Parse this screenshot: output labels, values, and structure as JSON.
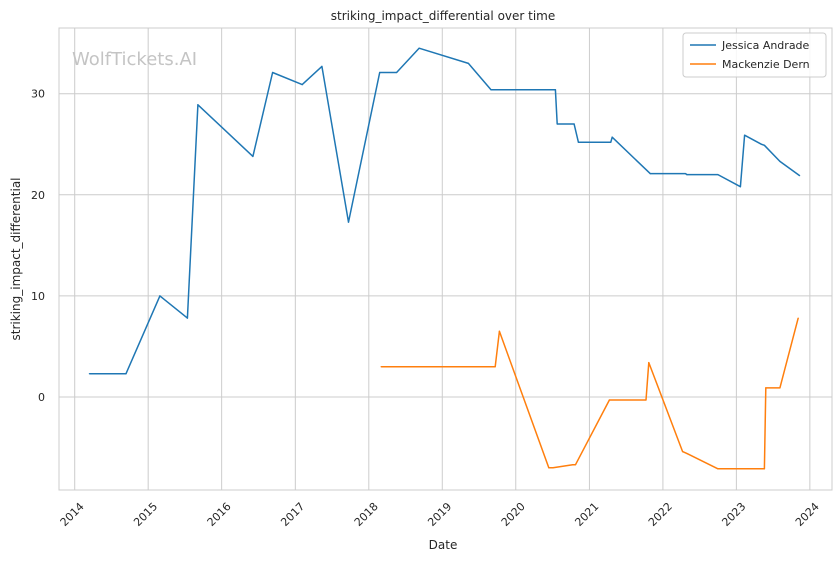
{
  "chart_data": {
    "type": "line",
    "title": "striking_impact_differential over time",
    "xlabel": "Date",
    "ylabel": "striking_impact_differential",
    "watermark": "WolfTickets.AI",
    "grid": true,
    "legend_position": "top-right",
    "xlim": [
      "2013-10-15",
      "2024-04-20"
    ],
    "ylim": [
      -9.2,
      36.5
    ],
    "x_ticks": [
      "2014",
      "2015",
      "2016",
      "2017",
      "2018",
      "2019",
      "2020",
      "2021",
      "2022",
      "2023",
      "2024"
    ],
    "y_ticks": [
      0,
      10,
      20,
      30
    ],
    "series": [
      {
        "name": "Jessica Andrade",
        "color": "#1f77b4",
        "points": [
          [
            "2014-03-15",
            2.3
          ],
          [
            "2014-09-13",
            2.3
          ],
          [
            "2015-02-28",
            10.0
          ],
          [
            "2015-07-15",
            7.8
          ],
          [
            "2015-09-05",
            28.9
          ],
          [
            "2016-06-04",
            23.8
          ],
          [
            "2016-09-10",
            32.1
          ],
          [
            "2017-02-04",
            30.9
          ],
          [
            "2017-05-13",
            32.7
          ],
          [
            "2017-09-22",
            17.3
          ],
          [
            "2018-02-24",
            32.1
          ],
          [
            "2018-05-19",
            32.1
          ],
          [
            "2018-09-08",
            34.5
          ],
          [
            "2019-05-11",
            33.0
          ],
          [
            "2019-08-31",
            30.4
          ],
          [
            "2020-04-18",
            30.4
          ],
          [
            "2020-07-16",
            30.4
          ],
          [
            "2020-07-25",
            27.0
          ],
          [
            "2020-10-17",
            27.0
          ],
          [
            "2020-11-07",
            25.2
          ],
          [
            "2021-04-17",
            25.2
          ],
          [
            "2021-04-24",
            25.7
          ],
          [
            "2021-10-30",
            22.1
          ],
          [
            "2022-04-23",
            22.1
          ],
          [
            "2022-04-30",
            22.0
          ],
          [
            "2022-10-01",
            22.0
          ],
          [
            "2023-01-21",
            20.8
          ],
          [
            "2023-02-11",
            25.9
          ],
          [
            "2023-05-06",
            25.0
          ],
          [
            "2023-05-20",
            24.9
          ],
          [
            "2023-08-05",
            23.3
          ],
          [
            "2023-11-11",
            21.9
          ]
        ]
      },
      {
        "name": "Mackenzie Dern",
        "color": "#ff7f0e",
        "points": [
          [
            "2018-03-03",
            3.0
          ],
          [
            "2019-09-21",
            3.0
          ],
          [
            "2019-10-12",
            6.5
          ],
          [
            "2020-06-13",
            -7.0
          ],
          [
            "2020-07-04",
            -7.0
          ],
          [
            "2020-10-10",
            -6.7
          ],
          [
            "2020-10-24",
            -6.7
          ],
          [
            "2021-04-10",
            -0.3
          ],
          [
            "2021-10-09",
            -0.3
          ],
          [
            "2021-10-23",
            3.4
          ],
          [
            "2022-04-09",
            -5.4
          ],
          [
            "2022-05-01",
            -5.6
          ],
          [
            "2022-10-01",
            -7.1
          ],
          [
            "2023-03-01",
            -7.1
          ],
          [
            "2023-05-20",
            -7.1
          ],
          [
            "2023-05-27",
            0.9
          ],
          [
            "2023-08-05",
            0.9
          ],
          [
            "2023-11-04",
            7.8
          ]
        ]
      }
    ]
  }
}
